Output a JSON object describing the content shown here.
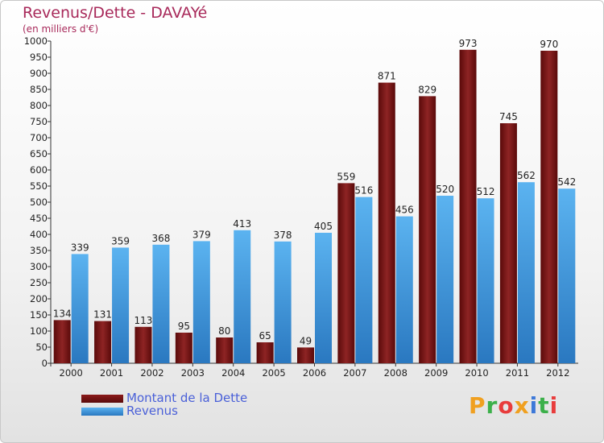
{
  "header": {
    "title": "Revenus/Dette - DAVAYé",
    "subtitle": "(en milliers d'€)"
  },
  "legend": [
    {
      "label": "Montant de la Dette",
      "color": "#8b1a1a"
    },
    {
      "label": "Revenus",
      "color": "#3e9be3"
    }
  ],
  "logo": {
    "text": "Proxiti",
    "colors": [
      "#f0a020",
      "#3cb04a",
      "#e83c3c",
      "#f0a020",
      "#3c78d8",
      "#3cb04a",
      "#e83c3c"
    ]
  },
  "chart_data": {
    "type": "bar",
    "categories": [
      "2000",
      "2001",
      "2002",
      "2003",
      "2004",
      "2005",
      "2006",
      "2007",
      "2008",
      "2009",
      "2010",
      "2011",
      "2012"
    ],
    "series": [
      {
        "name": "Montant de la Dette",
        "color": "#8b1a1a",
        "values": [
          134,
          131,
          113,
          95,
          80,
          65,
          49,
          559,
          871,
          829,
          973,
          745,
          970
        ]
      },
      {
        "name": "Revenus",
        "color": "#3e9be3",
        "values": [
          339,
          359,
          368,
          379,
          413,
          378,
          405,
          516,
          456,
          520,
          512,
          562,
          542
        ]
      }
    ],
    "ylim": [
      0,
      1000
    ],
    "yticks": [
      0,
      50,
      100,
      150,
      200,
      250,
      300,
      350,
      400,
      450,
      500,
      550,
      600,
      650,
      700,
      750,
      800,
      850,
      900,
      950,
      1000
    ],
    "grid": false,
    "legend_position": "bottom-left"
  }
}
